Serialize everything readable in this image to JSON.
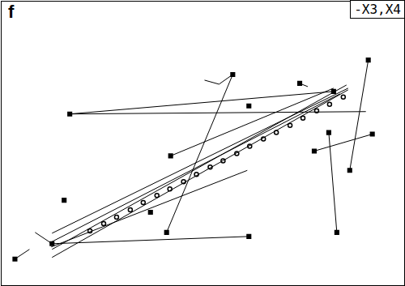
{
  "chart_data": {
    "type": "scatter",
    "title": "f",
    "annotation": "-X3,X4",
    "xlim": [
      0,
      500
    ],
    "ylim": [
      0,
      353
    ],
    "xticks": [],
    "yticks": [],
    "tick_labels": false,
    "grid": false,
    "color": "#000000",
    "marker": "square",
    "points": {
      "x": [
        287,
        370,
        307,
        412,
        455,
        432,
        406,
        460,
        388,
        416,
        210,
        85,
        78,
        185,
        205,
        307,
        63,
        17
      ],
      "y": [
        262,
        251,
        223,
        241,
        280,
        143,
        190,
        188,
        167,
        66,
        161,
        213,
        106,
        91,
        66,
        61,
        52,
        33
      ]
    },
    "segments": [
      [
        287,
        262,
        270,
        250
      ],
      [
        252,
        255,
        270,
        250
      ],
      [
        287,
        262,
        205,
        66
      ],
      [
        370,
        251,
        380,
        247
      ],
      [
        85,
        213,
        452,
        216
      ],
      [
        85,
        213,
        412,
        241
      ],
      [
        210,
        161,
        412,
        245
      ],
      [
        455,
        280,
        432,
        143
      ],
      [
        406,
        190,
        416,
        66
      ],
      [
        388,
        167,
        460,
        188
      ],
      [
        63,
        52,
        307,
        61
      ],
      [
        63,
        52,
        42,
        66
      ],
      [
        17,
        33,
        35,
        45
      ],
      [
        63,
        65,
        430,
        245
      ],
      [
        63,
        45,
        428,
        249
      ],
      [
        63,
        35,
        430,
        243
      ],
      [
        60,
        53,
        420,
        238
      ],
      [
        62,
        48,
        305,
        143
      ]
    ],
    "chain": {
      "marker": "circle",
      "x": [
        110,
        127,
        143,
        160,
        176,
        193,
        209,
        226,
        242,
        259,
        275,
        292,
        308,
        325,
        341,
        358,
        374,
        391,
        407,
        424
      ],
      "y": [
        68,
        77,
        85,
        94,
        103,
        112,
        120,
        129,
        138,
        147,
        155,
        164,
        173,
        182,
        190,
        199,
        208,
        217,
        225,
        234
      ]
    }
  }
}
